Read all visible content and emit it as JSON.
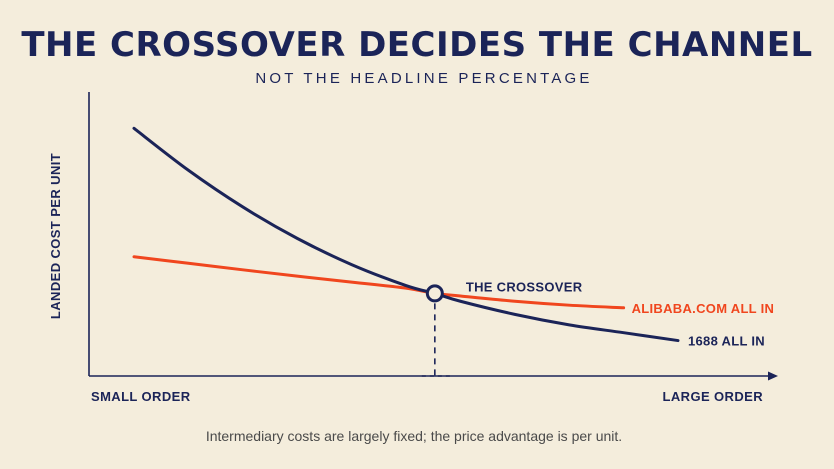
{
  "colors": {
    "background": "#f4eddc",
    "navy": "#1b2458",
    "orange": "#f0461e",
    "note": "#4a4a4a"
  },
  "chart_data": {
    "type": "line",
    "title": "THE CROSSOVER DECIDES THE CHANNEL",
    "subtitle": "NOT THE HEADLINE PERCENTAGE",
    "xlabel_left": "SMALL ORDER",
    "xlabel_right": "LARGE ORDER",
    "ylabel": "LANDED COST PER UNIT",
    "xlim": [
      0,
      100
    ],
    "ylim": [
      0,
      100
    ],
    "grid": false,
    "axis_ticks": false,
    "series": [
      {
        "name": "1688 ALL IN",
        "color": "#1b2458",
        "x": [
          0,
          10,
          20,
          30,
          40,
          50,
          55.3,
          60,
          70,
          80,
          90,
          100
        ],
        "y": [
          93,
          77,
          63,
          51,
          41,
          33,
          30,
          27,
          22,
          18,
          15,
          12
        ]
      },
      {
        "name": "ALIBABA.COM ALL IN",
        "color": "#f0461e",
        "x": [
          0,
          10,
          20,
          30,
          40,
          50,
          55.3,
          60,
          70,
          80,
          90,
          100
        ],
        "y": [
          44,
          41.5,
          39,
          36.6,
          34.3,
          32,
          30,
          29,
          27,
          25.5,
          24.5,
          24
        ]
      }
    ],
    "annotations": [
      {
        "text": "THE CROSSOVER",
        "x": 55.3,
        "y": 30
      }
    ],
    "note": "Intermediary costs are largely fixed; the price advantage is per unit."
  }
}
